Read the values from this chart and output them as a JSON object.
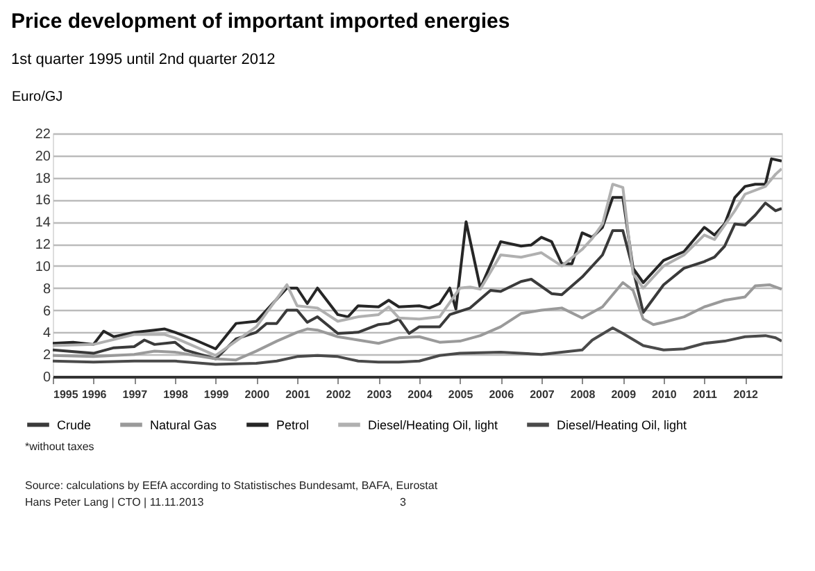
{
  "chart_data": {
    "type": "line",
    "title": "Price development of important imported energies",
    "subtitle": "1st quarter 1995 until 2nd quarter 2012",
    "ylabel": "Euro/GJ",
    "xlim": [
      1995,
      2012.9
    ],
    "xticks": [
      1995,
      1996,
      1997,
      1998,
      1999,
      2000,
      2001,
      2002,
      2003,
      2004,
      2005,
      2006,
      2007,
      2008,
      2009,
      2010,
      2011,
      2012
    ],
    "ylim": [
      0,
      22
    ],
    "yticks": [
      0,
      2,
      4,
      6,
      8,
      10,
      12,
      14,
      16,
      18,
      20,
      22
    ],
    "grid": "y",
    "legend": "bottom",
    "marker": "none",
    "line_style": "solid",
    "series": [
      {
        "name": "Crude",
        "color": "#3a3a3a",
        "x": [
          1995,
          1996,
          1996.5,
          1997,
          1997.25,
          1997.5,
          1998,
          1998.25,
          1999,
          1999.5,
          2000,
          2000.25,
          2000.5,
          2000.75,
          2001,
          2001.25,
          2001.5,
          2002,
          2002.5,
          2003,
          2003.25,
          2003.5,
          2003.75,
          2004,
          2004.5,
          2004.75,
          2005.25,
          2005.75,
          2006,
          2006.5,
          2006.75,
          2007.25,
          2007.5,
          2008,
          2008.5,
          2008.75,
          2009,
          2009.25,
          2009.5,
          2010,
          2010.5,
          2011,
          2011.25,
          2011.5,
          2011.75,
          2012,
          2012.25,
          2012.5,
          2012.75,
          2012.9
        ],
        "values": [
          2.4,
          2.1,
          2.6,
          2.7,
          3.3,
          2.9,
          3.1,
          2.4,
          1.6,
          3.4,
          4.0,
          4.8,
          4.8,
          6.0,
          6.0,
          4.9,
          5.4,
          3.9,
          4.0,
          4.7,
          4.8,
          5.2,
          3.9,
          4.5,
          4.5,
          5.6,
          6.2,
          7.8,
          7.7,
          8.6,
          8.8,
          7.5,
          7.4,
          9.0,
          11.0,
          13.2,
          13.2,
          9.7,
          5.8,
          8.3,
          9.8,
          10.4,
          10.8,
          11.8,
          13.8,
          13.7,
          14.6,
          15.7,
          15.0,
          15.2
        ]
      },
      {
        "name": "Natural Gas",
        "color": "#9a9a9a",
        "x": [
          1995,
          1996,
          1997,
          1997.5,
          1998,
          1999,
          1999.5,
          2000,
          2000.5,
          2001,
          2001.25,
          2001.5,
          2002,
          2002.5,
          2003,
          2003.5,
          2004,
          2004.5,
          2005,
          2005.5,
          2006,
          2006.5,
          2007,
          2007.5,
          2008,
          2008.5,
          2009,
          2009.25,
          2009.5,
          2009.75,
          2010,
          2010.5,
          2011,
          2011.5,
          2012,
          2012.25,
          2012.6,
          2012.9
        ],
        "values": [
          1.9,
          1.8,
          2.0,
          2.3,
          2.2,
          1.6,
          1.5,
          2.3,
          3.2,
          4.0,
          4.3,
          4.2,
          3.6,
          3.3,
          3.0,
          3.5,
          3.6,
          3.1,
          3.2,
          3.7,
          4.5,
          5.7,
          6.0,
          6.2,
          5.3,
          6.3,
          8.5,
          7.8,
          5.2,
          4.7,
          4.9,
          5.4,
          6.3,
          6.9,
          7.2,
          8.2,
          8.3,
          7.9
        ]
      },
      {
        "name": "Petrol",
        "color": "#262626",
        "x": [
          1995,
          1995.5,
          1996,
          1996.25,
          1996.5,
          1997,
          1997.5,
          1997.75,
          1998,
          1998.5,
          1999,
          1999.5,
          2000,
          2000.5,
          2000.75,
          2001,
          2001.25,
          2001.5,
          2002,
          2002.25,
          2002.5,
          2003,
          2003.25,
          2003.5,
          2004,
          2004.25,
          2004.5,
          2004.75,
          2004.9,
          2005.15,
          2005.5,
          2006,
          2006.5,
          2006.75,
          2007,
          2007.25,
          2007.5,
          2007.75,
          2008,
          2008.25,
          2008.5,
          2008.75,
          2009,
          2009.25,
          2009.5,
          2010,
          2010.5,
          2011,
          2011.25,
          2011.5,
          2011.75,
          2012,
          2012.25,
          2012.5,
          2012.65,
          2012.9
        ],
        "values": [
          3.0,
          3.1,
          2.9,
          4.1,
          3.6,
          4.0,
          4.2,
          4.3,
          4.0,
          3.3,
          2.5,
          4.8,
          5.0,
          7.0,
          8.0,
          8.0,
          6.6,
          8.0,
          5.6,
          5.4,
          6.4,
          6.3,
          6.9,
          6.3,
          6.4,
          6.2,
          6.6,
          8.0,
          6.1,
          14.0,
          8.0,
          12.2,
          11.8,
          11.9,
          12.6,
          12.2,
          10.2,
          10.2,
          13.0,
          12.6,
          13.5,
          16.2,
          16.2,
          9.8,
          8.5,
          10.5,
          11.3,
          13.5,
          12.8,
          13.8,
          16.2,
          17.2,
          17.4,
          17.4,
          19.7,
          19.5
        ]
      },
      {
        "name": "Diesel/Heating Oil, light",
        "color": "#b0b0b0",
        "x": [
          1995,
          1996,
          1997,
          1997.75,
          1998,
          1999,
          2000,
          2000.75,
          2001,
          2001.5,
          2002,
          2002.5,
          2003,
          2003.25,
          2003.5,
          2004,
          2004.5,
          2005,
          2005.25,
          2005.5,
          2006,
          2006.5,
          2007,
          2007.5,
          2008,
          2008.25,
          2008.5,
          2008.75,
          2009,
          2009.25,
          2009.5,
          2010,
          2010.5,
          2011,
          2011.25,
          2011.75,
          2012,
          2012.5,
          2012.75,
          2012.9
        ],
        "values": [
          2.8,
          2.9,
          3.8,
          3.8,
          3.5,
          1.9,
          4.5,
          8.3,
          6.4,
          6.2,
          5.0,
          5.4,
          5.6,
          6.3,
          5.3,
          5.2,
          5.4,
          8.0,
          8.1,
          7.9,
          11.0,
          10.8,
          11.2,
          10.0,
          11.5,
          12.5,
          13.8,
          17.4,
          17.1,
          9.3,
          8.0,
          10.0,
          11.0,
          12.8,
          12.4,
          15.0,
          16.5,
          17.2,
          18.3,
          18.8
        ]
      },
      {
        "name": "Diesel/Heating Oil, light",
        "color": "#4a4a4a",
        "x": [
          1995,
          1996,
          1997,
          1998,
          1999,
          2000,
          2000.5,
          2001,
          2001.5,
          2002,
          2002.5,
          2003,
          2003.5,
          2004,
          2004.5,
          2005,
          2006,
          2007,
          2008,
          2008.25,
          2008.75,
          2009,
          2009.5,
          2010,
          2010.5,
          2011,
          2011.5,
          2012,
          2012.5,
          2012.75,
          2012.9
        ],
        "values": [
          1.4,
          1.3,
          1.4,
          1.4,
          1.1,
          1.2,
          1.4,
          1.8,
          1.9,
          1.8,
          1.4,
          1.3,
          1.3,
          1.4,
          1.9,
          2.1,
          2.2,
          2.0,
          2.4,
          3.3,
          4.4,
          3.9,
          2.8,
          2.4,
          2.5,
          3.0,
          3.2,
          3.6,
          3.7,
          3.5,
          3.2
        ]
      }
    ],
    "annotations": [
      "*without taxes",
      "Source: calculations by EEfA according to Statistisches Bundesamt, BAFA, Eurostat",
      "Hans Peter Lang | CTO | 11.11.2013",
      "3"
    ]
  }
}
